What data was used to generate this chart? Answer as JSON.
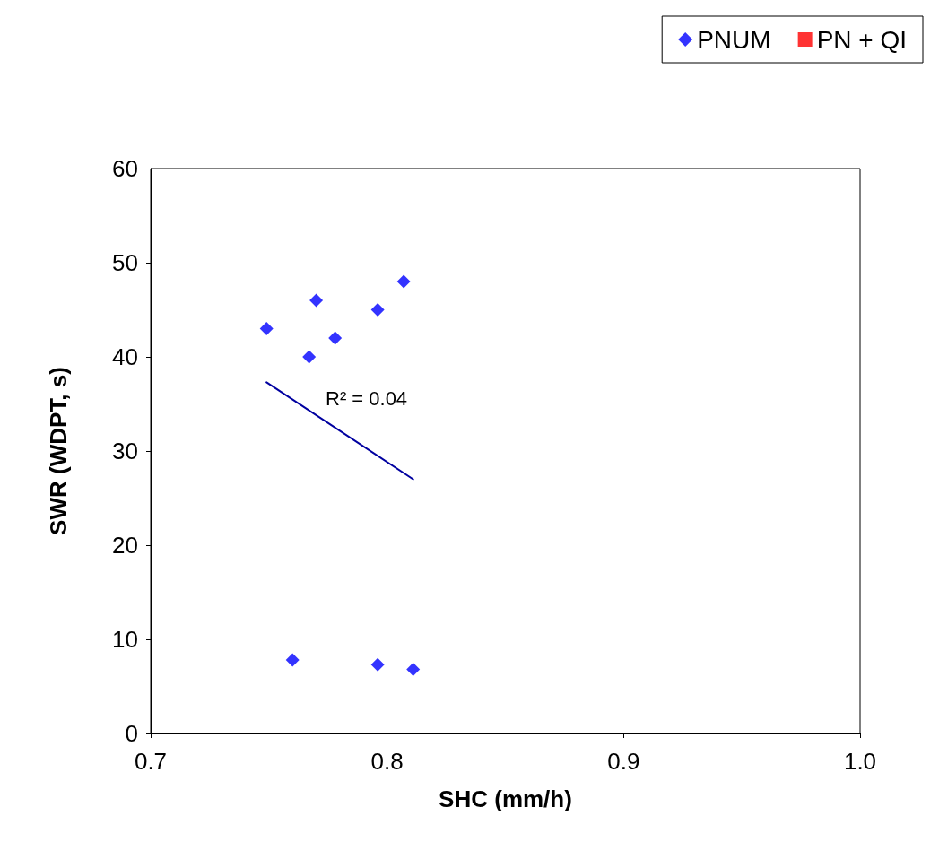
{
  "chart_data": {
    "type": "scatter",
    "xlabel": "SHC (mm/h)",
    "ylabel": "SWR (WDPT, s)",
    "xlim": [
      0.7,
      1.0
    ],
    "xticks": [
      0.7,
      0.8,
      0.9,
      {
        "value": 1.0,
        "label": "1.0"
      }
    ],
    "ylim": [
      0,
      60
    ],
    "yticks": [
      0,
      10,
      20,
      30,
      40,
      50,
      60
    ],
    "grid": false,
    "legend": "top right",
    "series": [
      {
        "name": "PNUM",
        "color": "#0000ff",
        "marker": "diamond",
        "x": [
          0.749,
          0.77,
          0.767,
          0.778,
          0.796,
          0.807,
          0.76,
          0.796,
          0.811
        ],
        "values": [
          43,
          46,
          40,
          42,
          45,
          48,
          7.8,
          7.3,
          6.8
        ]
      },
      {
        "name": "PN + QI",
        "color": "#ff0000",
        "marker": "square"
      },
      {
        "type": "line",
        "color": "#0000a0",
        "marker": "none",
        "x": [
          0.749,
          0.811
        ],
        "values": [
          37.3,
          27.0
        ]
      }
    ],
    "annotations": [
      "R² = 0.04"
    ]
  }
}
